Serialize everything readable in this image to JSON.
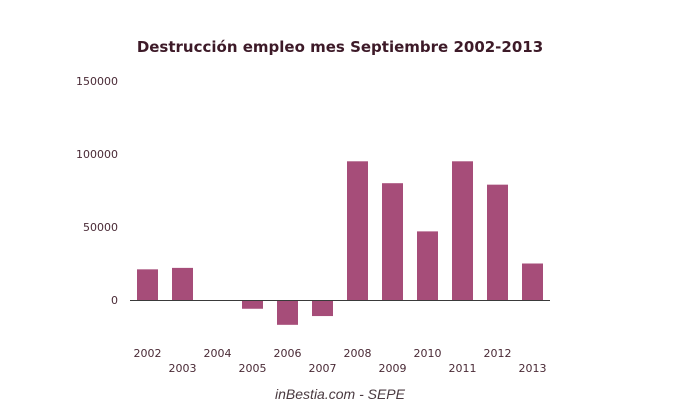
{
  "chart_data": {
    "type": "bar",
    "title": "Destrucción empleo mes Septiembre 2002-2013",
    "xlabel": "",
    "ylabel": "",
    "categories": [
      "2002",
      "2003",
      "2004",
      "2005",
      "2006",
      "2007",
      "2008",
      "2009",
      "2010",
      "2011",
      "2012",
      "2013"
    ],
    "values": [
      21000,
      22000,
      0,
      -6000,
      -17000,
      -11000,
      95000,
      80000,
      47000,
      95000,
      79000,
      25000
    ],
    "ylim": [
      -30000,
      150000
    ],
    "y_ticks": [
      "0",
      "50000",
      "100000",
      "150000"
    ],
    "grid": false,
    "legend": "none",
    "bar_color": "#a64d79",
    "source": "inBestia.com - SEPE"
  }
}
